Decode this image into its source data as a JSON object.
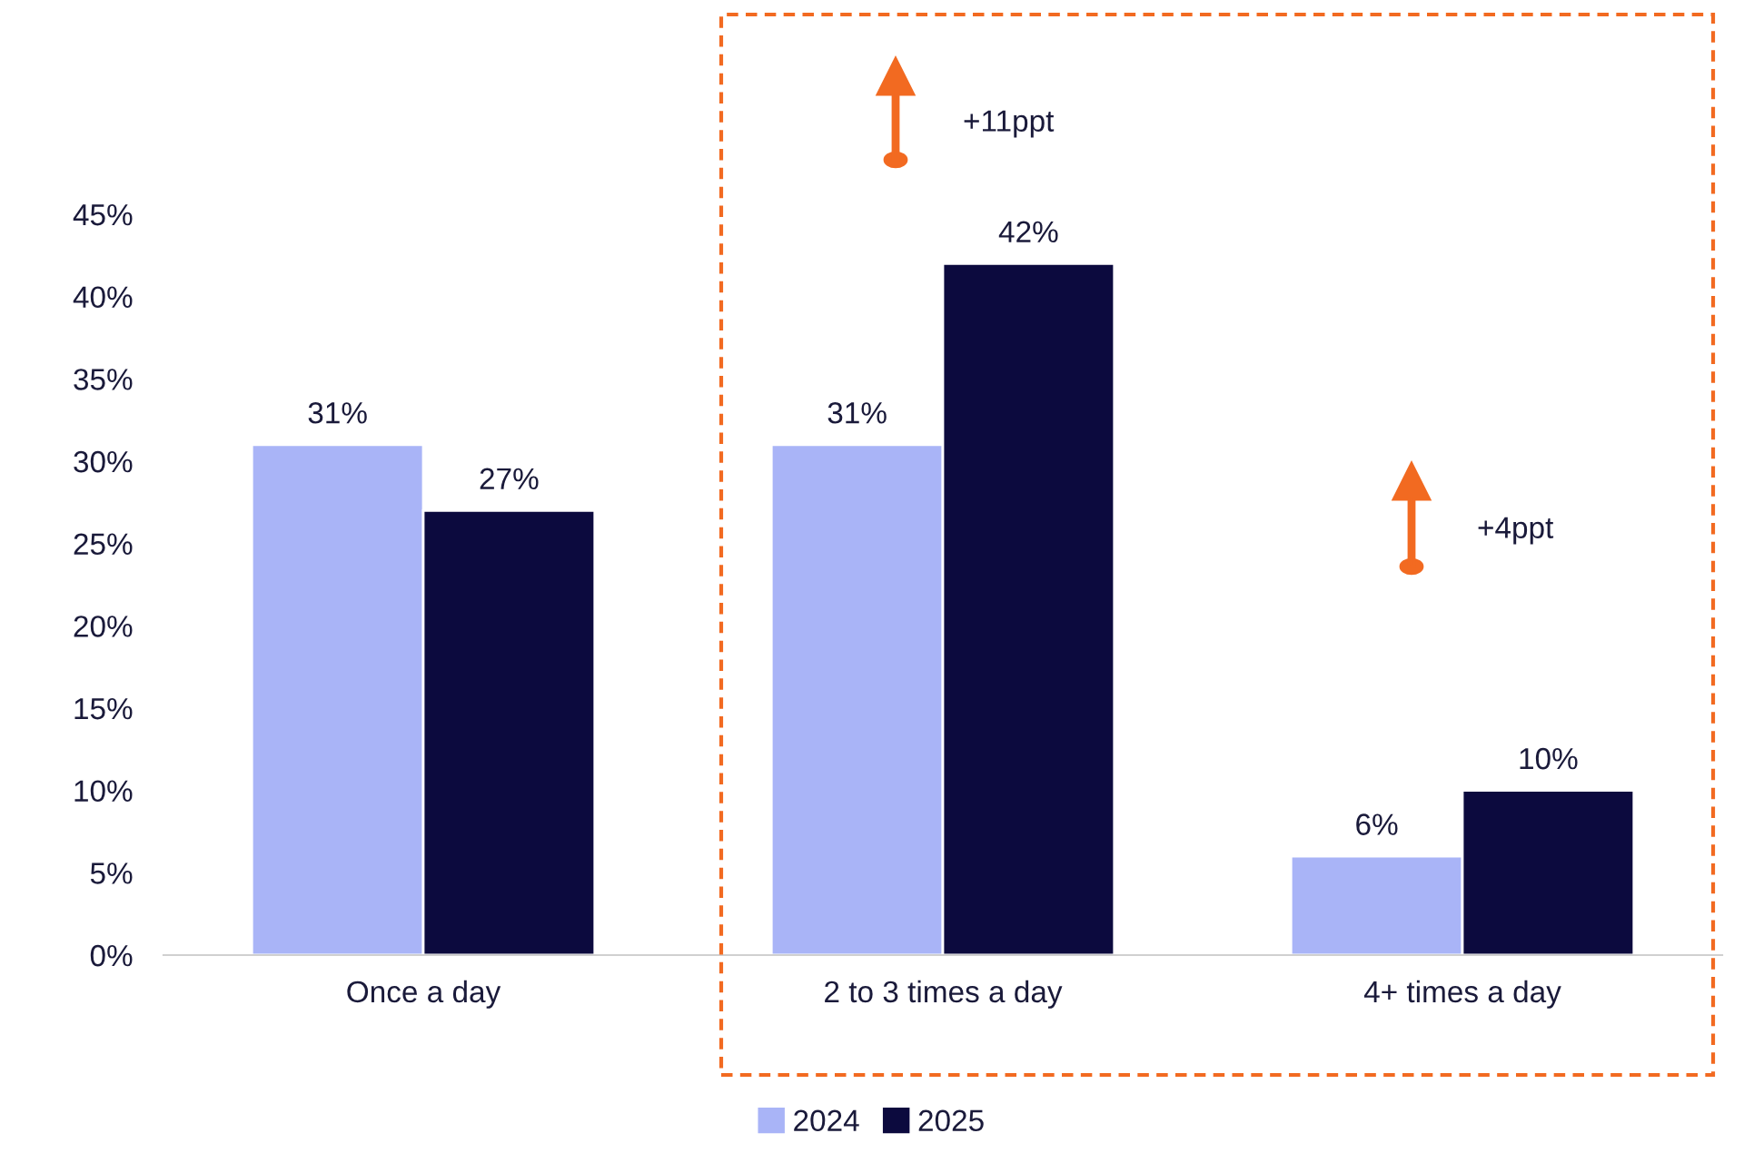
{
  "chart_data": {
    "type": "bar",
    "categories": [
      "Once a day",
      "2 to 3 times a day",
      "4+ times a day"
    ],
    "series": [
      {
        "name": "2024",
        "color": "#a9b4f7",
        "values": [
          31,
          31,
          6
        ],
        "value_labels": [
          "31%",
          "31%",
          "6%"
        ]
      },
      {
        "name": "2025",
        "color": "#0c0a3e",
        "values": [
          27,
          42,
          10
        ],
        "value_labels": [
          "27%",
          "42%",
          "10%"
        ]
      }
    ],
    "ylim": [
      0,
      45
    ],
    "yticks": [
      {
        "value": 0,
        "label": "0%"
      },
      {
        "value": 5,
        "label": "5%"
      },
      {
        "value": 10,
        "label": "10%"
      },
      {
        "value": 15,
        "label": "15%"
      },
      {
        "value": 20,
        "label": "20%"
      },
      {
        "value": 25,
        "label": "25%"
      },
      {
        "value": 30,
        "label": "30%"
      },
      {
        "value": 35,
        "label": "35%"
      },
      {
        "value": 40,
        "label": "40%"
      },
      {
        "value": 45,
        "label": "45%"
      }
    ],
    "annotations": [
      "+11ppt",
      "+4ppt"
    ],
    "grid": false,
    "legend": "bottom"
  }
}
